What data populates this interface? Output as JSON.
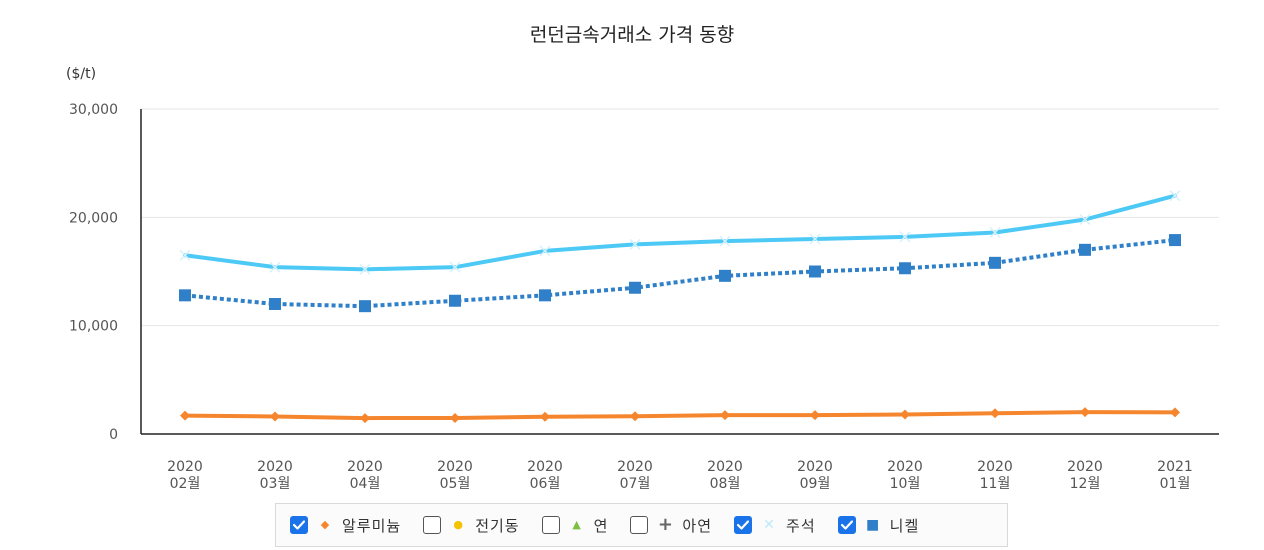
{
  "title": "런던금속거래소 가격 동향",
  "unit_label": "($/t)",
  "chart_data": {
    "type": "line",
    "title": "런던금속거래소 가격 동향",
    "ylabel": "($/t)",
    "ylim": [
      0,
      30000
    ],
    "yticks": [
      0,
      10000,
      20000,
      30000
    ],
    "ytick_labels": [
      "0",
      "10,000",
      "20,000",
      "30,000"
    ],
    "x": [
      {
        "year": "2020",
        "month": "02월"
      },
      {
        "year": "2020",
        "month": "03월"
      },
      {
        "year": "2020",
        "month": "04월"
      },
      {
        "year": "2020",
        "month": "05월"
      },
      {
        "year": "2020",
        "month": "06월"
      },
      {
        "year": "2020",
        "month": "07월"
      },
      {
        "year": "2020",
        "month": "08월"
      },
      {
        "year": "2020",
        "month": "09월"
      },
      {
        "year": "2020",
        "month": "10월"
      },
      {
        "year": "2020",
        "month": "11월"
      },
      {
        "year": "2020",
        "month": "12월"
      },
      {
        "year": "2021",
        "month": "01월"
      }
    ],
    "series": [
      {
        "name": "주석",
        "color": "#4dc9f6",
        "marker": "x",
        "dash": "solid",
        "checked": true,
        "values": [
          16500,
          15400,
          15200,
          15400,
          16900,
          17500,
          17800,
          18000,
          18200,
          18600,
          19800,
          22000
        ]
      },
      {
        "name": "니켈",
        "color": "#2f80c8",
        "marker": "square",
        "dash": "dotted",
        "checked": true,
        "values": [
          12800,
          12000,
          11800,
          12300,
          12800,
          13500,
          14600,
          15000,
          15300,
          15800,
          17000,
          17900
        ]
      },
      {
        "name": "알루미늄",
        "color": "#f5862e",
        "marker": "diamond",
        "dash": "solid",
        "checked": true,
        "values": [
          1700,
          1620,
          1470,
          1480,
          1590,
          1640,
          1740,
          1740,
          1800,
          1910,
          2020,
          2000
        ]
      }
    ],
    "legend": [
      {
        "name": "알루미늄",
        "marker": "diamond",
        "color": "#f5862e",
        "checked": true
      },
      {
        "name": "전기동",
        "marker": "circle",
        "color": "#f5c200",
        "checked": false
      },
      {
        "name": "연",
        "marker": "triangle",
        "color": "#7cc142",
        "checked": false
      },
      {
        "name": "아연",
        "marker": "plus",
        "color": "#666666",
        "checked": false
      },
      {
        "name": "주석",
        "marker": "x",
        "color": "#4dc9f6",
        "checked": true
      },
      {
        "name": "니켈",
        "marker": "square",
        "color": "#2f80c8",
        "checked": true
      }
    ],
    "legend_position": "bottom",
    "grid": true
  }
}
